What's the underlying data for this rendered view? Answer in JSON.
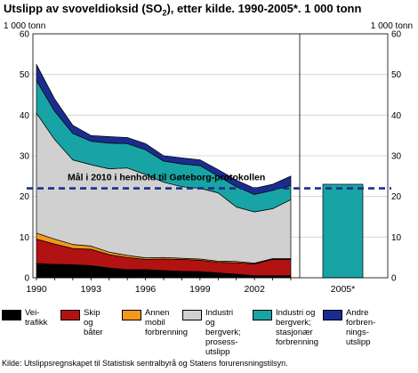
{
  "title_main": "Utslipp av svoveldioksid (SO",
  "title_sub": "2",
  "title_rest": "), etter kilde. 1990-2005*. 1 000 tonn",
  "unit_left": "1 000 tonn",
  "unit_right": "1 000 tonn",
  "source": "Kilde: Utslippsregnskapet til Statistisk sentralbyrå og Statens forurensningstilsyn.",
  "chart_data": {
    "type": "area",
    "stacked": true,
    "x": [
      1990,
      1991,
      1992,
      1993,
      1994,
      1995,
      1996,
      1997,
      1998,
      1999,
      2000,
      2001,
      2002,
      2003,
      2004
    ],
    "x_tick_labels": [
      "1990",
      "1993",
      "1996",
      "1999",
      "2002"
    ],
    "x_tick_values": [
      1990,
      1993,
      1996,
      1999,
      2002
    ],
    "ylim": [
      0,
      60
    ],
    "y_ticks": [
      0,
      10,
      20,
      30,
      40,
      50,
      60
    ],
    "grid": true,
    "series": [
      {
        "name": "Vei-\ntrafikk",
        "color": "#000000",
        "values": [
          3.5,
          3.3,
          3.2,
          3.0,
          2.4,
          2.0,
          2.0,
          1.8,
          1.6,
          1.5,
          1.2,
          0.9,
          0.5,
          0.5,
          0.5
        ]
      },
      {
        "name": "Skip og\nbåter",
        "color": "#b31212",
        "values": [
          6.0,
          5.0,
          4.0,
          4.0,
          3.3,
          3.0,
          2.5,
          2.8,
          2.9,
          2.8,
          2.6,
          2.8,
          2.9,
          4.0,
          4.0
        ]
      },
      {
        "name": "Annen\nmobil\nforbrenning",
        "color": "#f2991c",
        "values": [
          1.5,
          1.2,
          1.0,
          0.8,
          0.6,
          0.5,
          0.4,
          0.4,
          0.3,
          0.3,
          0.3,
          0.3,
          0.2,
          0.2,
          0.2
        ]
      },
      {
        "name": "Industri og\nbergverk;\nprosess-\nutslipp",
        "color": "#d0d0d0",
        "values": [
          29.5,
          24.5,
          20.8,
          20.0,
          20.5,
          21.5,
          20.5,
          18.5,
          17.6,
          17.4,
          16.8,
          13.4,
          12.6,
          12.3,
          14.5
        ]
      },
      {
        "name": "Industri og\nbergverk;\nstasjonær\nforbrenning",
        "color": "#18a4a4",
        "values": [
          8.0,
          7.0,
          6.5,
          5.8,
          6.3,
          6.0,
          6.1,
          5.2,
          5.6,
          5.6,
          4.1,
          5.0,
          4.3,
          4.5,
          3.5
        ]
      },
      {
        "name": "Andre\nforbren-\nnings-\nutslipp",
        "color": "#1a2d8f",
        "values": [
          4.0,
          3.0,
          2.0,
          1.4,
          1.6,
          1.5,
          1.5,
          1.3,
          1.5,
          1.4,
          1.6,
          1.6,
          1.5,
          1.5,
          2.3
        ]
      }
    ],
    "bar_2005": {
      "label": "2005*",
      "value": 23.0,
      "color": "#18a4a4"
    },
    "target_line": {
      "value": 22.0,
      "label": "Mål i 2010 i henhold til Gøteborg-protokollen",
      "color": "#1a2d8f",
      "style": "dashed"
    }
  }
}
